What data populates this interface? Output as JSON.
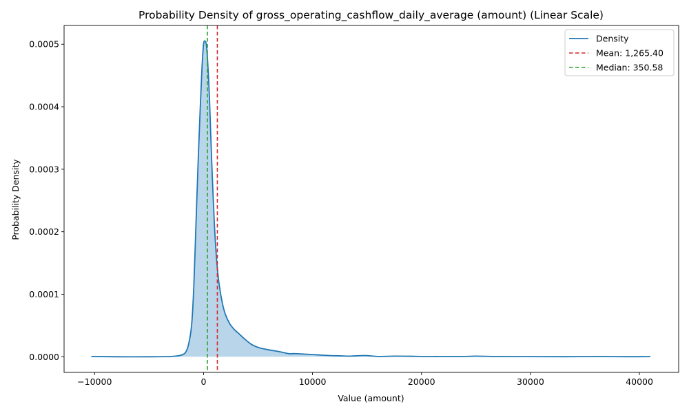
{
  "chart_data": {
    "type": "area",
    "title": "Probability Density of gross_operating_cashflow_daily_average (amount) (Linear Scale)",
    "xlabel": "Value (amount)",
    "ylabel": "Probability Density",
    "xlim": [
      -12800,
      43600
    ],
    "ylim": [
      -2.5e-05,
      0.00053
    ],
    "x_ticks": [
      -10000,
      0,
      10000,
      20000,
      30000,
      40000
    ],
    "x_tick_labels": [
      "−10000",
      "0",
      "10000",
      "20000",
      "30000",
      "40000"
    ],
    "y_ticks": [
      0.0,
      0.0001,
      0.0002,
      0.0003,
      0.0004,
      0.0005
    ],
    "y_tick_labels": [
      "0.0000",
      "0.0001",
      "0.0002",
      "0.0003",
      "0.0004",
      "0.0005"
    ],
    "grid": false,
    "legend_position": "top-right",
    "colors": {
      "density": "#1f77b4",
      "fill": "#b9d5ea",
      "mean": "#d62728",
      "median": "#2ca02c"
    },
    "series": [
      {
        "name": "Density",
        "x": [
          -10300,
          -8000,
          -5000,
          -3000,
          -2200,
          -1700,
          -1400,
          -1100,
          -900,
          -700,
          -500,
          -300,
          -150,
          0,
          150,
          250,
          350,
          450,
          550,
          650,
          800,
          1000,
          1200,
          1400,
          1700,
          2000,
          2400,
          2800,
          3300,
          3800,
          4300,
          4700,
          5200,
          6000,
          7000,
          7800,
          8500,
          9500,
          10500,
          11500,
          12500,
          13500,
          14800,
          16000,
          17500,
          19000,
          20500,
          22000,
          24000,
          25000,
          27000,
          30000,
          33000,
          36500,
          39000,
          41000
        ],
        "y": [
          5e-07,
          0.0,
          0.0,
          5e-07,
          2e-06,
          6e-06,
          1.8e-05,
          5e-05,
          0.00011,
          0.00021,
          0.00031,
          0.0004,
          0.00046,
          0.0005,
          0.000505,
          0.0005,
          0.00048,
          0.00045,
          0.00041,
          0.00036,
          0.00029,
          0.00021,
          0.000155,
          0.00012,
          8.8e-05,
          6.8e-05,
          5.3e-05,
          4.4e-05,
          3.6e-05,
          2.8e-05,
          2.1e-05,
          1.7e-05,
          1.4e-05,
          1.1e-05,
          8e-06,
          5e-06,
          5e-06,
          4e-06,
          3e-06,
          2e-06,
          1.5e-06,
          1e-06,
          2e-06,
          5e-07,
          1e-06,
          8e-07,
          3e-07,
          5e-07,
          5e-07,
          1e-06,
          3e-07,
          2e-07,
          1e-07,
          3e-07,
          1e-07,
          2e-07
        ]
      }
    ],
    "mean": {
      "value": 1265.4,
      "label": "Mean: 1,265.40"
    },
    "median": {
      "value": 350.58,
      "label": "Median: 350.58"
    },
    "legend": [
      "Density",
      "Mean: 1,265.40",
      "Median: 350.58"
    ]
  }
}
